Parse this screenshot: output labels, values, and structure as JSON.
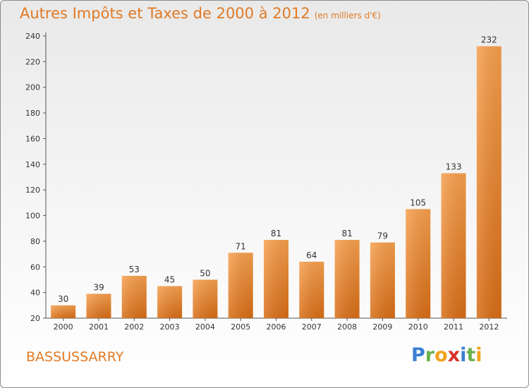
{
  "chart_data": {
    "type": "bar",
    "title": "Autres Impôts et Taxes de 2000 à 2012",
    "subtitle": "(en milliers d'€)",
    "categories": [
      "2000",
      "2001",
      "2002",
      "2003",
      "2004",
      "2005",
      "2006",
      "2007",
      "2008",
      "2009",
      "2010",
      "2011",
      "2012"
    ],
    "values": [
      30,
      39,
      53,
      45,
      50,
      71,
      81,
      64,
      81,
      79,
      105,
      133,
      232
    ],
    "ylim": [
      20,
      240
    ],
    "yticks": [
      20,
      40,
      60,
      80,
      100,
      120,
      140,
      160,
      180,
      200,
      220,
      240
    ],
    "grid": false,
    "bar_color": "#f08a2e"
  },
  "footer": {
    "place": "BASSUSSARRY",
    "logo_letters": [
      {
        "ch": "P",
        "color": "#3a7fd0"
      },
      {
        "ch": "r",
        "color": "#6ab04c"
      },
      {
        "ch": "o",
        "color": "#f2a21b"
      },
      {
        "ch": "x",
        "color": "#d8322b"
      },
      {
        "ch": "i",
        "color": "#3a7fd0"
      },
      {
        "ch": "t",
        "color": "#6ab04c"
      },
      {
        "ch": "i",
        "color": "#f2a21b"
      }
    ]
  }
}
